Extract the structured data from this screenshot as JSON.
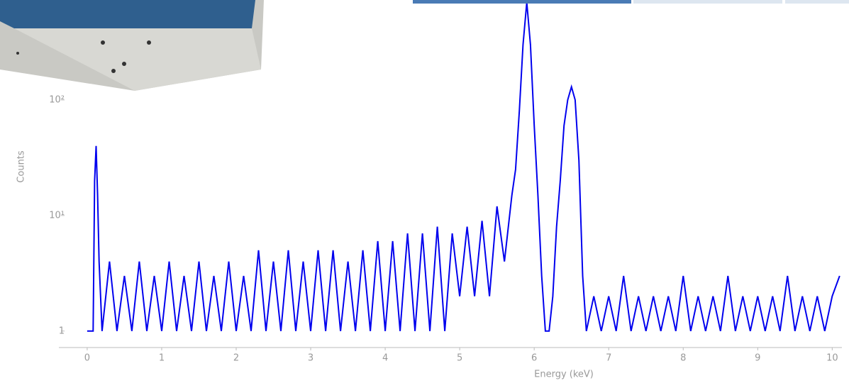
{
  "chart_data": {
    "type": "line",
    "x_label": "Energy (keV)",
    "y_label": "Counts",
    "log_y": true,
    "xlim": [
      -0.38,
      10.13
    ],
    "ylim": [
      0.72,
      733
    ],
    "xticks": [
      0,
      1,
      2,
      3,
      4,
      5,
      6,
      7,
      8,
      9,
      10
    ],
    "yticks": [
      {
        "value": 1,
        "label": "1"
      },
      {
        "value": 10,
        "label": "10¹"
      },
      {
        "value": 100,
        "label": "10²"
      }
    ],
    "series": [
      {
        "color": "#0000ee",
        "x": [
          0,
          0.08,
          0.1,
          0.12,
          0.14,
          0.16,
          0.2,
          0.3,
          0.4,
          0.5,
          0.6,
          0.7,
          0.8,
          0.9,
          1.0,
          1.1,
          1.2,
          1.3,
          1.4,
          1.5,
          1.6,
          1.7,
          1.8,
          1.9,
          2.0,
          2.1,
          2.2,
          2.3,
          2.4,
          2.5,
          2.6,
          2.7,
          2.8,
          2.9,
          3.0,
          3.1,
          3.2,
          3.3,
          3.4,
          3.5,
          3.6,
          3.7,
          3.8,
          3.9,
          4.0,
          4.1,
          4.2,
          4.3,
          4.4,
          4.5,
          4.6,
          4.7,
          4.8,
          4.9,
          5.0,
          5.1,
          5.2,
          5.3,
          5.4,
          5.5,
          5.6,
          5.7,
          5.75,
          5.8,
          5.85,
          5.9,
          5.95,
          6.0,
          6.05,
          6.1,
          6.15,
          6.2,
          6.25,
          6.3,
          6.35,
          6.4,
          6.45,
          6.5,
          6.55,
          6.6,
          6.65,
          6.7,
          6.8,
          6.9,
          7.0,
          7.1,
          7.2,
          7.3,
          7.4,
          7.5,
          7.6,
          7.7,
          7.8,
          7.9,
          8.0,
          8.1,
          8.2,
          8.3,
          8.4,
          8.5,
          8.6,
          8.7,
          8.8,
          8.9,
          9.0,
          9.1,
          9.2,
          9.3,
          9.4,
          9.5,
          9.6,
          9.7,
          9.8,
          9.9,
          10.0,
          10.1
        ],
        "values": [
          1,
          1,
          20,
          40,
          15,
          4,
          1,
          4,
          1,
          3,
          1,
          4,
          1,
          3,
          1,
          4,
          1,
          3,
          1,
          4,
          1,
          3,
          1,
          4,
          1,
          3,
          1,
          5,
          1,
          4,
          1,
          5,
          1,
          4,
          1,
          5,
          1,
          5,
          1,
          4,
          1,
          5,
          1,
          6,
          1,
          6,
          1,
          7,
          1,
          7,
          1,
          8,
          1,
          7,
          2,
          8,
          2,
          9,
          2,
          12,
          4,
          15,
          25,
          80,
          300,
          700,
          300,
          60,
          15,
          3,
          1,
          1,
          2,
          8,
          20,
          60,
          100,
          130,
          100,
          30,
          3,
          1,
          2,
          1,
          2,
          1,
          3,
          1,
          2,
          1,
          2,
          1,
          2,
          1,
          3,
          1,
          2,
          1,
          2,
          1,
          3,
          1,
          2,
          1,
          2,
          1,
          2,
          1,
          3,
          1,
          2,
          1,
          2,
          1,
          2,
          3
        ]
      }
    ]
  }
}
